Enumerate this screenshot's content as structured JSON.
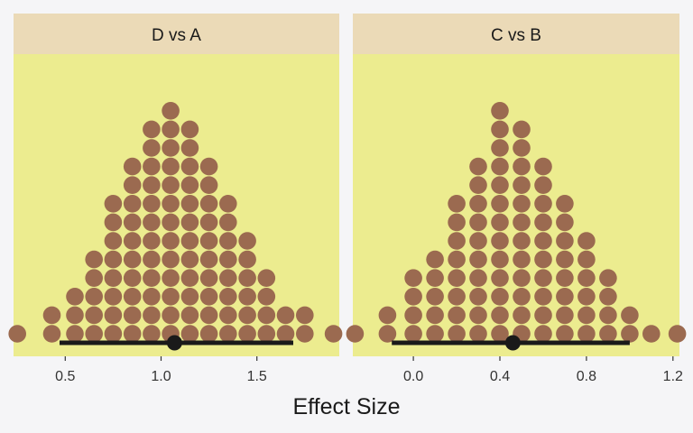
{
  "colors": {
    "background": "#f5f5f7",
    "strip": "#ebdab7",
    "panel": "#ecec8f",
    "dot": "#9b6a50",
    "interval": "#1a1a1a"
  },
  "chart_data": {
    "type": "dotplot",
    "xlabel": "Effect Size",
    "panels": [
      {
        "title": "D vs A",
        "xlim": [
          0.23,
          1.93
        ],
        "ticks": [
          0.5,
          1.0,
          1.5
        ],
        "tick_labels": [
          "0.5",
          "1.0",
          "1.5"
        ],
        "bin_centers": [
          0.25,
          0.43,
          0.55,
          0.65,
          0.75,
          0.85,
          0.95,
          1.05,
          1.15,
          1.25,
          1.35,
          1.45,
          1.55,
          1.65,
          1.75,
          1.9
        ],
        "counts": [
          1,
          2,
          3,
          5,
          8,
          10,
          12,
          13,
          12,
          10,
          8,
          6,
          4,
          2,
          2,
          1
        ],
        "interval": {
          "low": 0.47,
          "high": 1.69,
          "point": 1.07
        }
      },
      {
        "title": "C vs B",
        "xlim": [
          -0.28,
          1.23
        ],
        "ticks": [
          0.0,
          0.4,
          0.8,
          1.2
        ],
        "tick_labels": [
          "0.0",
          "0.4",
          "0.8",
          "1.2"
        ],
        "bin_centers": [
          -0.27,
          -0.12,
          0.0,
          0.1,
          0.2,
          0.3,
          0.4,
          0.5,
          0.6,
          0.7,
          0.8,
          0.9,
          1.0,
          1.1,
          1.22
        ],
        "counts": [
          1,
          2,
          4,
          5,
          8,
          10,
          13,
          12,
          10,
          8,
          6,
          4,
          2,
          1,
          1
        ],
        "interval": {
          "low": -0.1,
          "high": 1.0,
          "point": 0.46
        }
      }
    ]
  }
}
